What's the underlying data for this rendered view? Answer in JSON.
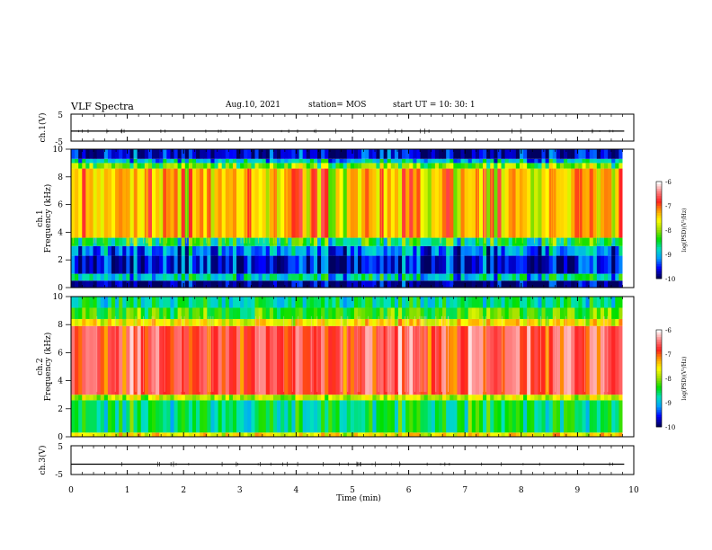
{
  "header": {
    "title": "VLF Spectra",
    "date": "Aug.10, 2021",
    "station": "station= MOS",
    "start": "start  UT =   10: 30: 1"
  },
  "chart_data": [
    {
      "type": "line",
      "panel": "ch1-waveform",
      "ylabel": "ch.1(V)",
      "yticks": [
        "5",
        "-5"
      ],
      "ylim": [
        -5,
        5
      ],
      "series": [
        {
          "values": [
            -1.3,
            -1.3
          ]
        }
      ],
      "xlim": [
        0,
        10
      ]
    },
    {
      "type": "heatmap",
      "panel": "ch1-spectrogram",
      "ylabel_1": "ch.1",
      "ylabel_2": "Frequency (kHz)",
      "yticks": [
        "0",
        "2",
        "4",
        "6",
        "8",
        "10"
      ],
      "ylim": [
        0,
        10
      ],
      "xlim": [
        0,
        9.8
      ],
      "colorbar": {
        "label": "log(PSD)(V²/Hz)",
        "ticks": [
          "-6",
          "-7",
          "-8",
          "-9",
          "-10"
        ],
        "range": [
          -10,
          -6
        ],
        "colors": [
          "#000060",
          "#0000ff",
          "#00a0ff",
          "#00e0c0",
          "#00e000",
          "#a0e000",
          "#ffff00",
          "#ffa000",
          "#ff2020",
          "#ff8080",
          "#ffffff"
        ]
      },
      "bands": [
        {
          "f": [
            0,
            0.5
          ],
          "level": -10
        },
        {
          "f": [
            0.5,
            1.0
          ],
          "level": -8.9
        },
        {
          "f": [
            1.0,
            2.3
          ],
          "level": -9.7
        },
        {
          "f": [
            2.3,
            3.0
          ],
          "level": -9.3
        },
        {
          "f": [
            3.0,
            3.6
          ],
          "level": -8.6
        },
        {
          "f": [
            3.6,
            8.6
          ],
          "level": -7.4
        },
        {
          "f": [
            8.6,
            9.0
          ],
          "level": -8.2
        },
        {
          "f": [
            9.0,
            9.3
          ],
          "level": -9.0
        },
        {
          "f": [
            9.3,
            10.0
          ],
          "level": -9.8
        }
      ]
    },
    {
      "type": "heatmap",
      "panel": "ch2-spectrogram",
      "ylabel_1": "ch.2",
      "ylabel_2": "Frequency (kHz)",
      "yticks": [
        "0",
        "2",
        "4",
        "6",
        "8",
        "10"
      ],
      "ylim": [
        0,
        10
      ],
      "xlim": [
        0,
        9.8
      ],
      "colorbar": {
        "label": "log(PSD)(V²/Hz)",
        "ticks": [
          "-6",
          "-7",
          "-8",
          "-9",
          "-10"
        ],
        "range": [
          -10,
          -6
        ]
      },
      "bands": [
        {
          "f": [
            0,
            0.3
          ],
          "level": -7.6
        },
        {
          "f": [
            0.3,
            2.6
          ],
          "level": -8.6
        },
        {
          "f": [
            2.6,
            3.0
          ],
          "level": -7.9
        },
        {
          "f": [
            3.0,
            7.9
          ],
          "level": -6.7
        },
        {
          "f": [
            7.9,
            8.4
          ],
          "level": -7.6
        },
        {
          "f": [
            8.4,
            9.2
          ],
          "level": -8.3
        },
        {
          "f": [
            9.2,
            10.0
          ],
          "level": -8.7
        }
      ]
    },
    {
      "type": "line",
      "panel": "ch3-waveform",
      "ylabel": "ch.3(V)",
      "yticks": [
        "5",
        "-5"
      ],
      "ylim": [
        -5,
        5
      ],
      "series": [
        {
          "values": [
            -1.4,
            -1.4
          ]
        }
      ],
      "xlim": [
        0,
        10
      ],
      "xlabel": "Time (min)",
      "xticks": [
        "0",
        "1",
        "2",
        "3",
        "4",
        "5",
        "6",
        "7",
        "8",
        "9",
        "10"
      ]
    }
  ]
}
